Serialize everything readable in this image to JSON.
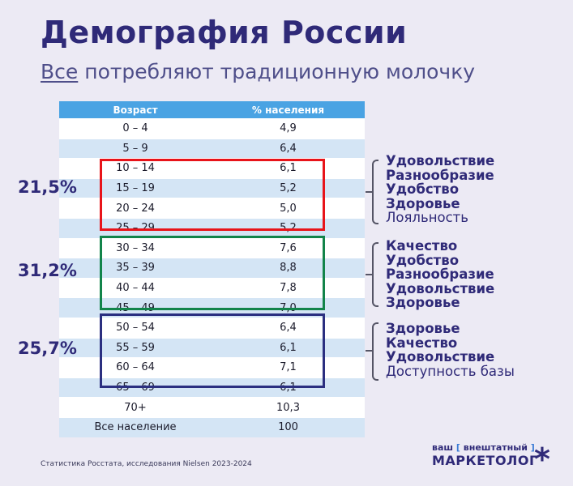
{
  "title": "Демография России",
  "subtitle": {
    "underlined": "Все",
    "rest": " потребляют традиционную молочку"
  },
  "table": {
    "headers": [
      "Возраст",
      "% населения"
    ],
    "rows": [
      [
        "0 – 4",
        "4,9"
      ],
      [
        "5 – 9",
        "6,4"
      ],
      [
        "10 – 14",
        "6,1"
      ],
      [
        "15 – 19",
        "5,2"
      ],
      [
        "20 – 24",
        "5,0"
      ],
      [
        "25 – 29",
        "5,2"
      ],
      [
        "30 – 34",
        "7,6"
      ],
      [
        "35 – 39",
        "8,8"
      ],
      [
        "40 – 44",
        "7,8"
      ],
      [
        "45 – 49",
        "7,0"
      ],
      [
        "50 – 54",
        "6,4"
      ],
      [
        "55 – 59",
        "6,1"
      ],
      [
        "60 – 64",
        "7,1"
      ],
      [
        "65 – 69",
        "6,1"
      ],
      [
        "70+",
        "10,3"
      ],
      [
        "Все население",
        "100"
      ]
    ]
  },
  "groups": [
    {
      "percent": "21,5%",
      "color": "#e8141a",
      "bold": [
        "Удовольствие",
        "Разнообразие",
        "Удобство",
        "Здоровье"
      ],
      "regular": [
        "Лояльность"
      ]
    },
    {
      "percent": "31,2%",
      "color": "#12844a",
      "bold": [
        "Качество",
        "Удобство",
        "Разнообразие",
        "Удовольствие",
        "Здоровье"
      ],
      "regular": []
    },
    {
      "percent": "25,7%",
      "color": "#2b2f80",
      "bold": [
        "Здоровье",
        "Качество",
        "Удовольствие"
      ],
      "regular": [
        "Доступность базы"
      ]
    }
  ],
  "footer": "Статистика Росстата, исследования Nielsen 2023-2024",
  "logo": {
    "line1_pre": "ваш ",
    "line1_bracket_open": "[",
    "line1_mid": " внештатный ",
    "line1_bracket_close": "]",
    "line2": "МАРКЕТОЛОГ",
    "star": "*"
  }
}
